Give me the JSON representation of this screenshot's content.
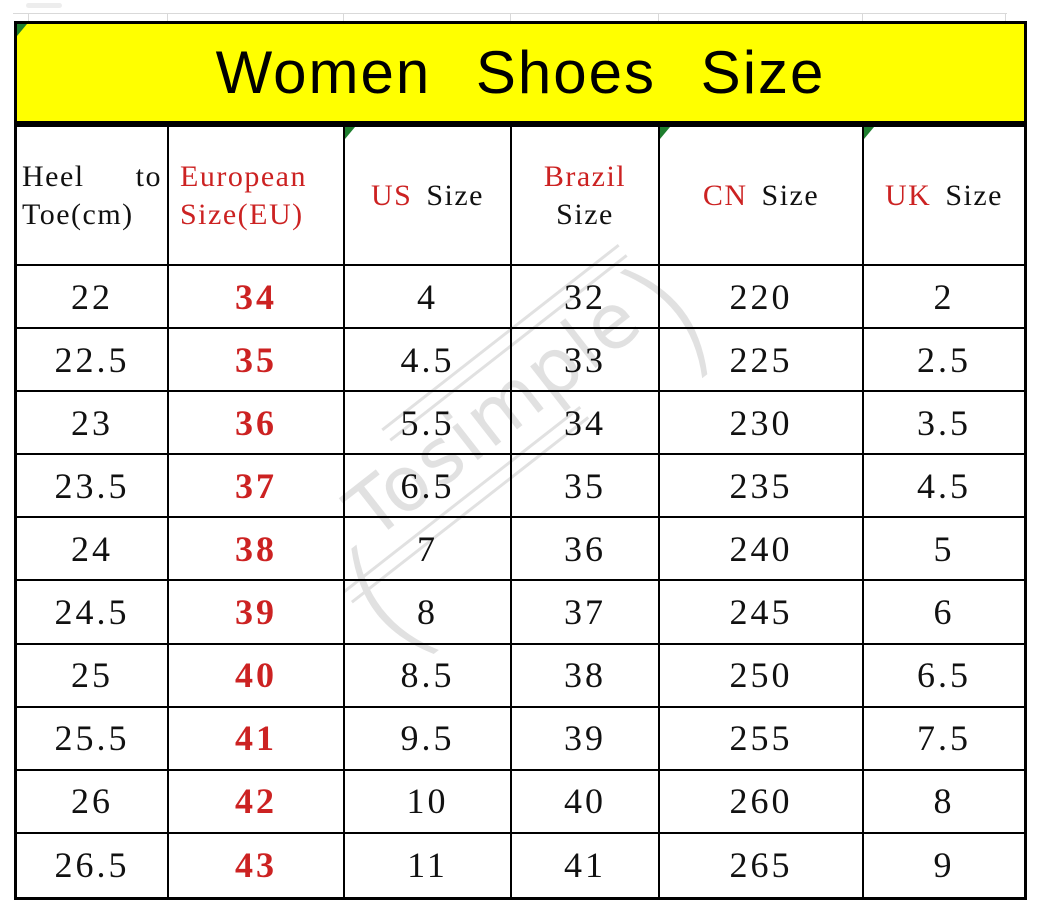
{
  "banner": {
    "title": "Women Shoes Size"
  },
  "header": {
    "heel": {
      "w1": "Heel",
      "w2": "to",
      "line2": "Toe(cm)"
    },
    "eu": {
      "line1": "European",
      "line2": "Size(EU)"
    },
    "us": {
      "region": "US",
      "word": "Size"
    },
    "brazil": {
      "line1": "Brazil",
      "line2": "Size"
    },
    "cn": {
      "region": "CN",
      "word": "Size"
    },
    "uk": {
      "region": "UK",
      "word": "Size"
    }
  },
  "watermark": {
    "text": "Tosimple",
    "open_paren": "(",
    "close_paren": ")"
  },
  "colors": {
    "banner_yellow": "#ffff00",
    "accent_red": "#cc2222",
    "note_marker_green": "#1e7e2e",
    "border_black": "#000000",
    "watermark_gray": "#c9c9c9"
  },
  "chart_data": {
    "type": "table",
    "title": "Women Shoes Size",
    "columns": [
      "Heel to Toe(cm)",
      "European Size(EU)",
      "US Size",
      "Brazil Size",
      "CN Size",
      "UK Size"
    ],
    "accent_column": "European Size(EU)",
    "rows": [
      [
        "22",
        "34",
        "4",
        "32",
        "220",
        "2"
      ],
      [
        "22.5",
        "35",
        "4.5",
        "33",
        "225",
        "2.5"
      ],
      [
        "23",
        "36",
        "5.5",
        "34",
        "230",
        "3.5"
      ],
      [
        "23.5",
        "37",
        "6.5",
        "35",
        "235",
        "4.5"
      ],
      [
        "24",
        "38",
        "7",
        "36",
        "240",
        "5"
      ],
      [
        "24.5",
        "39",
        "8",
        "37",
        "245",
        "6"
      ],
      [
        "25",
        "40",
        "8.5",
        "38",
        "250",
        "6.5"
      ],
      [
        "25.5",
        "41",
        "9.5",
        "39",
        "255",
        "7.5"
      ],
      [
        "26",
        "42",
        "10",
        "40",
        "260",
        "8"
      ],
      [
        "26.5",
        "43",
        "11",
        "41",
        "265",
        "9"
      ]
    ]
  }
}
